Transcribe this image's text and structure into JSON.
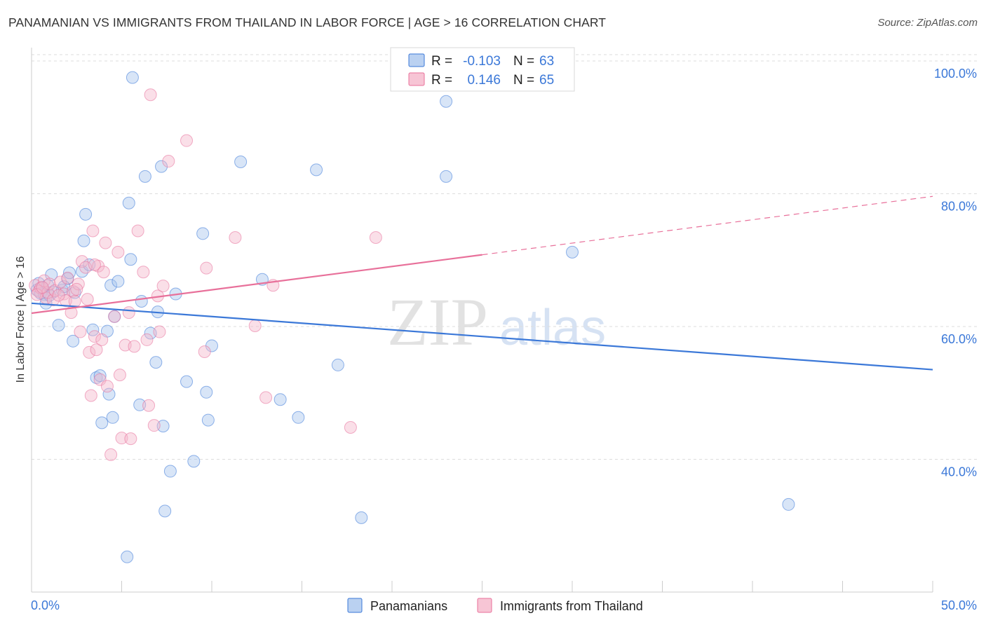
{
  "title": "PANAMANIAN VS IMMIGRANTS FROM THAILAND IN LABOR FORCE | AGE > 16 CORRELATION CHART",
  "source": "Source: ZipAtlas.com",
  "watermark": {
    "zip": "ZIP",
    "atlas": "atlas"
  },
  "legend_box": {
    "rows": [
      {
        "r_label": "R =",
        "r_value": "-0.103",
        "n_label": "N =",
        "n_value": "63"
      },
      {
        "r_label": "R =",
        "r_value": "0.146",
        "n_label": "N =",
        "n_value": "65"
      }
    ]
  },
  "colors": {
    "blue": "#3b78d8",
    "blue_fill": "#a9c5ee",
    "pink": "#e8709a",
    "pink_fill": "#f5b7cb",
    "grid": "#dddddd",
    "axis_label": "#3b78d8"
  },
  "chart_data": {
    "type": "scatter",
    "title": "PANAMANIAN VS IMMIGRANTS FROM THAILAND IN LABOR FORCE | AGE > 16 CORRELATION CHART",
    "xlabel": "",
    "ylabel": "In Labor Force | Age > 16",
    "xlim": [
      0,
      50
    ],
    "ylim": [
      20,
      102
    ],
    "x_tick_labels": [
      "0.0%",
      "50.0%"
    ],
    "y_ticks": [
      40,
      60,
      80,
      100
    ],
    "y_tick_labels": [
      "40.0%",
      "60.0%",
      "80.0%",
      "100.0%"
    ],
    "grid": true,
    "legend": [
      "Panamanians",
      "Immigrants from Thailand"
    ],
    "series": [
      {
        "name": "Panamanians",
        "color": "#3b78d8",
        "trend": {
          "x": [
            0,
            50
          ],
          "y": [
            63.5,
            53.5
          ],
          "dashed_from": null
        },
        "points": [
          [
            0.3,
            65.5
          ],
          [
            0.4,
            66.5
          ],
          [
            0.6,
            65.8
          ],
          [
            0.7,
            64.8
          ],
          [
            0.8,
            63.5
          ],
          [
            0.9,
            66.2
          ],
          [
            1.1,
            67.8
          ],
          [
            1.2,
            65.2
          ],
          [
            1.5,
            60.2
          ],
          [
            1.7,
            65.5
          ],
          [
            2.0,
            67.2
          ],
          [
            2.1,
            68.1
          ],
          [
            2.3,
            57.8
          ],
          [
            2.4,
            65.1
          ],
          [
            2.8,
            68.3
          ],
          [
            2.9,
            72.9
          ],
          [
            3.0,
            76.9
          ],
          [
            3.2,
            69.3
          ],
          [
            3.4,
            59.5
          ],
          [
            3.6,
            52.3
          ],
          [
            3.8,
            52.6
          ],
          [
            3.9,
            45.5
          ],
          [
            4.2,
            59.3
          ],
          [
            4.3,
            49.8
          ],
          [
            4.4,
            66.2
          ],
          [
            4.5,
            46.3
          ],
          [
            4.6,
            61.5
          ],
          [
            4.8,
            66.8
          ],
          [
            5.3,
            25.3
          ],
          [
            5.4,
            78.6
          ],
          [
            5.5,
            70.1
          ],
          [
            5.6,
            97.5
          ],
          [
            6.0,
            48.2
          ],
          [
            6.1,
            63.8
          ],
          [
            6.3,
            82.6
          ],
          [
            6.6,
            59.0
          ],
          [
            6.9,
            54.6
          ],
          [
            7.0,
            62.2
          ],
          [
            7.2,
            84.1
          ],
          [
            7.3,
            45.0
          ],
          [
            7.4,
            32.2
          ],
          [
            7.7,
            38.2
          ],
          [
            8.0,
            64.9
          ],
          [
            8.6,
            51.7
          ],
          [
            9.0,
            39.7
          ],
          [
            9.5,
            74.0
          ],
          [
            9.7,
            50.1
          ],
          [
            9.8,
            45.9
          ],
          [
            10.0,
            57.1
          ],
          [
            11.6,
            84.8
          ],
          [
            12.8,
            67.1
          ],
          [
            13.8,
            49.0
          ],
          [
            14.8,
            46.3
          ],
          [
            15.8,
            83.6
          ],
          [
            17.0,
            54.2
          ],
          [
            18.3,
            31.2
          ],
          [
            23.0,
            93.9
          ],
          [
            23.0,
            82.6
          ],
          [
            30.0,
            71.2
          ],
          [
            42.0,
            33.2
          ],
          [
            0.5,
            65.0
          ],
          [
            1.0,
            64.7
          ],
          [
            1.8,
            66.0
          ]
        ]
      },
      {
        "name": "Immigrants from Thailand",
        "color": "#e8709a",
        "trend": {
          "x": [
            0,
            25,
            50
          ],
          "y": [
            62.0,
            70.8,
            79.6
          ],
          "dashed_from": 25
        },
        "points": [
          [
            0.2,
            66.2
          ],
          [
            0.4,
            65.3
          ],
          [
            0.5,
            65.8
          ],
          [
            0.7,
            66.9
          ],
          [
            0.8,
            64.3
          ],
          [
            0.9,
            65.1
          ],
          [
            1.0,
            66.4
          ],
          [
            1.2,
            64.0
          ],
          [
            1.3,
            65.4
          ],
          [
            1.6,
            66.7
          ],
          [
            1.8,
            64.9
          ],
          [
            1.9,
            63.9
          ],
          [
            2.0,
            67.3
          ],
          [
            2.2,
            62.1
          ],
          [
            2.3,
            65.3
          ],
          [
            2.4,
            63.8
          ],
          [
            2.6,
            66.4
          ],
          [
            2.7,
            59.2
          ],
          [
            2.8,
            69.8
          ],
          [
            3.0,
            68.9
          ],
          [
            3.1,
            64.1
          ],
          [
            3.2,
            56.1
          ],
          [
            3.3,
            49.6
          ],
          [
            3.4,
            74.4
          ],
          [
            3.5,
            58.5
          ],
          [
            3.6,
            56.5
          ],
          [
            3.7,
            69.1
          ],
          [
            3.8,
            52.0
          ],
          [
            3.9,
            58.0
          ],
          [
            4.1,
            72.6
          ],
          [
            4.2,
            51.0
          ],
          [
            4.4,
            40.7
          ],
          [
            4.6,
            61.5
          ],
          [
            4.8,
            71.2
          ],
          [
            4.9,
            52.7
          ],
          [
            5.0,
            43.2
          ],
          [
            5.2,
            57.2
          ],
          [
            5.5,
            43.1
          ],
          [
            5.7,
            57.0
          ],
          [
            5.9,
            74.4
          ],
          [
            6.2,
            68.2
          ],
          [
            6.4,
            58.0
          ],
          [
            6.5,
            48.1
          ],
          [
            6.6,
            94.9
          ],
          [
            6.8,
            45.1
          ],
          [
            7.0,
            64.6
          ],
          [
            7.1,
            59.2
          ],
          [
            7.3,
            66.1
          ],
          [
            7.6,
            84.9
          ],
          [
            8.6,
            88.0
          ],
          [
            9.6,
            56.2
          ],
          [
            9.7,
            68.8
          ],
          [
            11.3,
            73.4
          ],
          [
            12.4,
            60.1
          ],
          [
            13.0,
            49.3
          ],
          [
            13.4,
            66.2
          ],
          [
            17.7,
            44.8
          ],
          [
            19.1,
            73.4
          ],
          [
            0.3,
            64.8
          ],
          [
            0.6,
            65.9
          ],
          [
            1.5,
            64.7
          ],
          [
            2.5,
            65.6
          ],
          [
            3.5,
            69.3
          ],
          [
            4.0,
            68.2
          ],
          [
            5.4,
            62.1
          ]
        ]
      }
    ]
  }
}
